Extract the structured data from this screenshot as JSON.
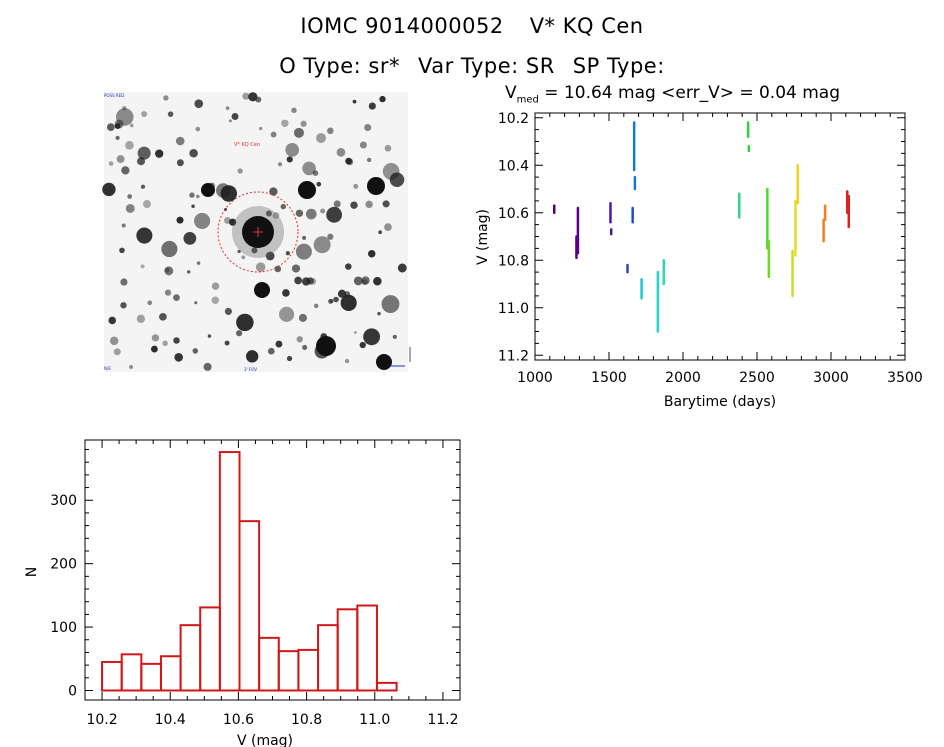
{
  "header": {
    "object_id": "IOMC 9014000052",
    "star_name": "V* KQ Cen",
    "o_type": "O Type: sr*",
    "var_type": "Var Type: SR",
    "sp_type": "SP Type:"
  },
  "finder_image": {
    "label_top_left": "POSS RED",
    "label_marker": "V* KQ Cen",
    "label_bottom_left": "N/E",
    "label_bottom_center": "3' FOV"
  },
  "chart_data": [
    {
      "type": "scatter",
      "name": "light-curve",
      "title_prefix": "V",
      "title_subscript": "med",
      "title_rest": " = 10.64 mag <err_V> = 0.04 mag",
      "xlabel": "Barytime (days)",
      "ylabel": "V (mag)",
      "xlim": [
        1000,
        3500
      ],
      "ylim": [
        11.22,
        10.18
      ],
      "xticks": [
        1000,
        1500,
        2000,
        2500,
        3000,
        3500
      ],
      "yticks": [
        10.2,
        10.4,
        10.6,
        10.8,
        11.0,
        11.2
      ],
      "xtick_labels": [
        "1000",
        "1500",
        "2000",
        "2500",
        "3000",
        "3500"
      ],
      "ytick_labels": [
        "10.2",
        "10.4",
        "10.6",
        "10.8",
        "11.0",
        "11.2"
      ],
      "segments": [
        {
          "x": 1130,
          "y0": 10.57,
          "y1": 10.6,
          "color": "#4b0082"
        },
        {
          "x": 1280,
          "y0": 10.7,
          "y1": 10.79,
          "color": "#5a0090"
        },
        {
          "x": 1290,
          "y0": 10.58,
          "y1": 10.77,
          "color": "#5a0090"
        },
        {
          "x": 1510,
          "y0": 10.56,
          "y1": 10.64,
          "color": "#4a18a8"
        },
        {
          "x": 1515,
          "y0": 10.67,
          "y1": 10.69,
          "color": "#4a18a8"
        },
        {
          "x": 1625,
          "y0": 10.82,
          "y1": 10.85,
          "color": "#3040b8"
        },
        {
          "x": 1660,
          "y0": 10.58,
          "y1": 10.64,
          "color": "#2050c0"
        },
        {
          "x": 1670,
          "y0": 10.22,
          "y1": 10.42,
          "color": "#1878d0"
        },
        {
          "x": 1675,
          "y0": 10.45,
          "y1": 10.5,
          "color": "#1878d0"
        },
        {
          "x": 1720,
          "y0": 10.88,
          "y1": 10.96,
          "color": "#20c8d0"
        },
        {
          "x": 1830,
          "y0": 10.85,
          "y1": 11.1,
          "color": "#20d8c8"
        },
        {
          "x": 1870,
          "y0": 10.8,
          "y1": 10.9,
          "color": "#30d8b0"
        },
        {
          "x": 2380,
          "y0": 10.52,
          "y1": 10.62,
          "color": "#30d880"
        },
        {
          "x": 2440,
          "y0": 10.22,
          "y1": 10.28,
          "color": "#30d040"
        },
        {
          "x": 2445,
          "y0": 10.32,
          "y1": 10.34,
          "color": "#30d040"
        },
        {
          "x": 2570,
          "y0": 10.5,
          "y1": 10.75,
          "color": "#50d830"
        },
        {
          "x": 2580,
          "y0": 10.72,
          "y1": 10.87,
          "color": "#70d820"
        },
        {
          "x": 2740,
          "y0": 10.76,
          "y1": 10.95,
          "color": "#c8e020"
        },
        {
          "x": 2760,
          "y0": 10.55,
          "y1": 10.78,
          "color": "#e0e020"
        },
        {
          "x": 2775,
          "y0": 10.4,
          "y1": 10.56,
          "color": "#f0d020"
        },
        {
          "x": 2950,
          "y0": 10.63,
          "y1": 10.72,
          "color": "#f08020"
        },
        {
          "x": 2960,
          "y0": 10.57,
          "y1": 10.63,
          "color": "#f08020"
        },
        {
          "x": 3110,
          "y0": 10.51,
          "y1": 10.6,
          "color": "#e02020"
        },
        {
          "x": 3120,
          "y0": 10.53,
          "y1": 10.66,
          "color": "#e02020"
        }
      ]
    },
    {
      "type": "bar",
      "name": "histogram",
      "xlabel": "V (mag)",
      "ylabel": "N",
      "xlim": [
        10.15,
        11.25
      ],
      "ylim": [
        -15,
        395
      ],
      "xticks": [
        10.2,
        10.4,
        10.6,
        10.8,
        11.0,
        11.2
      ],
      "xtick_labels": [
        "10.2",
        "10.4",
        "10.6",
        "10.8",
        "11.0",
        "11.2"
      ],
      "yticks": [
        0,
        100,
        200,
        300
      ],
      "ytick_labels": [
        "0",
        "100",
        "200",
        "300"
      ],
      "bin_start": 10.2,
      "bin_width": 0.0576,
      "values": [
        45,
        57,
        42,
        54,
        103,
        131,
        376,
        267,
        83,
        62,
        64,
        103,
        128,
        134,
        12
      ],
      "color": "#d01818"
    }
  ],
  "colors": {
    "axis": "#000000",
    "finder_marker": "#e03030",
    "finder_label": "#2030c0"
  }
}
